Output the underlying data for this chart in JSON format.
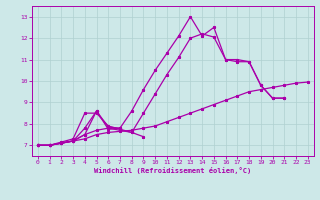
{
  "xlabel": "Windchill (Refroidissement éolien,°C)",
  "xlim": [
    -0.5,
    23.5
  ],
  "ylim": [
    6.5,
    13.5
  ],
  "yticks": [
    7,
    8,
    9,
    10,
    11,
    12,
    13
  ],
  "xticks": [
    0,
    1,
    2,
    3,
    4,
    5,
    6,
    7,
    8,
    9,
    10,
    11,
    12,
    13,
    14,
    15,
    16,
    17,
    18,
    19,
    20,
    21,
    22,
    23
  ],
  "background_color": "#cde8e8",
  "grid_color": "#b0d0d0",
  "line_color": "#aa00aa",
  "line1_x": [
    0,
    1,
    2,
    3,
    4,
    5,
    6,
    7,
    8,
    9,
    10,
    11,
    12,
    13,
    14,
    15,
    16,
    17,
    18,
    19,
    20,
    21
  ],
  "line1_y": [
    7.0,
    7.0,
    7.1,
    7.2,
    7.5,
    8.6,
    7.75,
    7.8,
    8.6,
    9.6,
    10.5,
    11.3,
    12.1,
    13.0,
    12.1,
    12.5,
    11.0,
    11.0,
    10.9,
    9.8,
    9.2,
    9.2
  ],
  "line2_x": [
    0,
    1,
    2,
    3,
    4,
    5,
    6,
    7
  ],
  "line2_y": [
    7.0,
    7.0,
    7.1,
    7.2,
    7.8,
    8.6,
    7.85,
    7.8
  ],
  "line3_x": [
    0,
    1,
    2,
    3,
    4,
    5,
    6,
    7,
    8,
    9
  ],
  "line3_y": [
    7.0,
    7.0,
    7.15,
    7.3,
    8.5,
    8.5,
    7.9,
    7.75,
    7.6,
    7.4
  ],
  "line4_x": [
    0,
    1,
    2,
    3,
    4,
    5,
    6,
    7,
    8,
    9,
    10,
    11,
    12,
    13,
    14,
    15,
    16,
    17,
    18,
    19,
    20,
    21,
    22,
    23
  ],
  "line4_y": [
    7.0,
    7.0,
    7.1,
    7.2,
    7.3,
    7.5,
    7.6,
    7.65,
    7.7,
    7.8,
    7.9,
    8.1,
    8.3,
    8.5,
    8.7,
    8.9,
    9.1,
    9.3,
    9.5,
    9.6,
    9.7,
    9.8,
    9.9,
    9.95
  ],
  "line5_x": [
    0,
    1,
    2,
    3,
    4,
    5,
    6,
    7,
    8,
    9,
    10,
    11,
    12,
    13,
    14,
    15,
    16,
    17,
    18,
    19,
    20,
    21
  ],
  "line5_y": [
    7.0,
    7.0,
    7.1,
    7.2,
    7.5,
    7.7,
    7.8,
    7.7,
    7.6,
    8.5,
    9.4,
    10.3,
    11.1,
    12.0,
    12.2,
    12.05,
    11.0,
    10.9,
    10.9,
    9.8,
    9.2,
    9.2
  ]
}
